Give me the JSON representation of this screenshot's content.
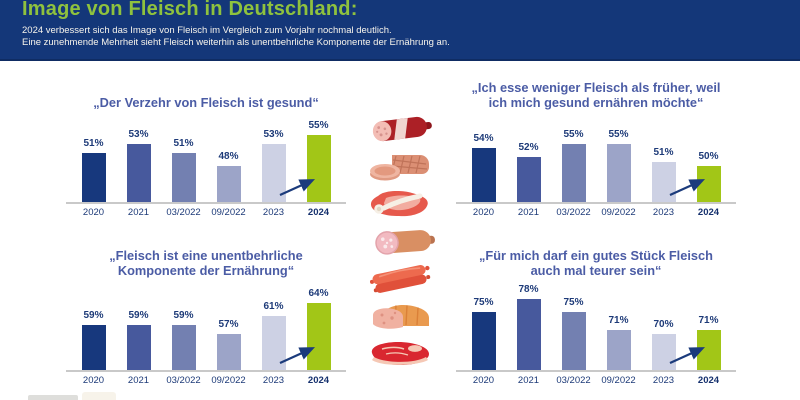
{
  "header": {
    "title": "Image von Fleisch in Deutschland:",
    "subtitle_line1": "2024 verbessert sich das Image von Fleisch im Vergleich zum Vorjahr nochmal deutlich.",
    "subtitle_line2": "Eine zunehmende Mehrheit sieht Fleisch weiterhin als unentbehrliche Komponente der Ernährung an."
  },
  "colors": {
    "header_bg": "#143779",
    "title_green": "#8fc23e",
    "bar_colors": [
      "#17387d",
      "#47599d",
      "#7380b1",
      "#9ca4c8",
      "#cdd1e4",
      "#a2c617"
    ],
    "highlight_green": "#a2c617",
    "label_navy": "#1d3a78",
    "chart_title_blue": "#4b5ca5",
    "axis_line_gray": "#c9c9c9",
    "arrow_navy": "#1b3b7c"
  },
  "chart_data": [
    {
      "type": "bar",
      "title": "„Der Verzehr von Fleisch ist gesund“",
      "title_line1": "„Der Verzehr von Fleisch ist gesund“",
      "title_line2": "",
      "categories": [
        "2020",
        "2021",
        "03/2022",
        "09/2022",
        "2023",
        "2024"
      ],
      "values": [
        51,
        53,
        51,
        48,
        53,
        55
      ],
      "unit": "%",
      "highlight_index": 5,
      "annotation": "arrow from 2023 toward 2024",
      "ylim": [
        0,
        100
      ],
      "grid": false,
      "legend": false
    },
    {
      "type": "bar",
      "title": "„Ich esse weniger Fleisch als früher, weil ich mich gesund ernähren möchte“",
      "title_line1": "„Ich esse weniger Fleisch als früher, weil",
      "title_line2": "ich mich gesund ernähren möchte“",
      "categories": [
        "2020",
        "2021",
        "03/2022",
        "09/2022",
        "2023",
        "2024"
      ],
      "values": [
        54,
        52,
        55,
        55,
        51,
        50
      ],
      "unit": "%",
      "highlight_index": 5,
      "annotation": "arrow from 2023 toward 2024",
      "ylim": [
        0,
        100
      ],
      "grid": false,
      "legend": false
    },
    {
      "type": "bar",
      "title": "„Fleisch ist eine unentbehrliche Komponente der Ernährung“",
      "title_line1": "„Fleisch ist eine unentbehrliche",
      "title_line2": "Komponente der Ernährung“",
      "categories": [
        "2020",
        "2021",
        "03/2022",
        "09/2022",
        "2023",
        "2024"
      ],
      "values": [
        59,
        59,
        59,
        57,
        61,
        64
      ],
      "unit": "%",
      "highlight_index": 5,
      "annotation": "arrow from 2023 toward 2024",
      "ylim": [
        0,
        100
      ],
      "grid": false,
      "legend": false
    },
    {
      "type": "bar",
      "title": "„Für mich darf ein gutes Stück Fleisch auch mal teurer sein“",
      "title_line1": "„Für mich darf ein gutes Stück Fleisch",
      "title_line2": "auch mal teurer sein“",
      "categories": [
        "2020",
        "2021",
        "03/2022",
        "09/2022",
        "2023",
        "2024"
      ],
      "values": [
        75,
        78,
        75,
        71,
        70,
        71
      ],
      "unit": "%",
      "highlight_index": 5,
      "annotation": "arrow from 2023 toward 2024",
      "ylim": [
        0,
        100
      ],
      "grid": false,
      "legend": false
    }
  ],
  "illustrations": [
    "salami-illustration",
    "ham-slices-illustration",
    "pork-chop-illustration",
    "mortadella-illustration",
    "sausages-illustration",
    "meatloaf-illustration",
    "steak-illustration"
  ]
}
